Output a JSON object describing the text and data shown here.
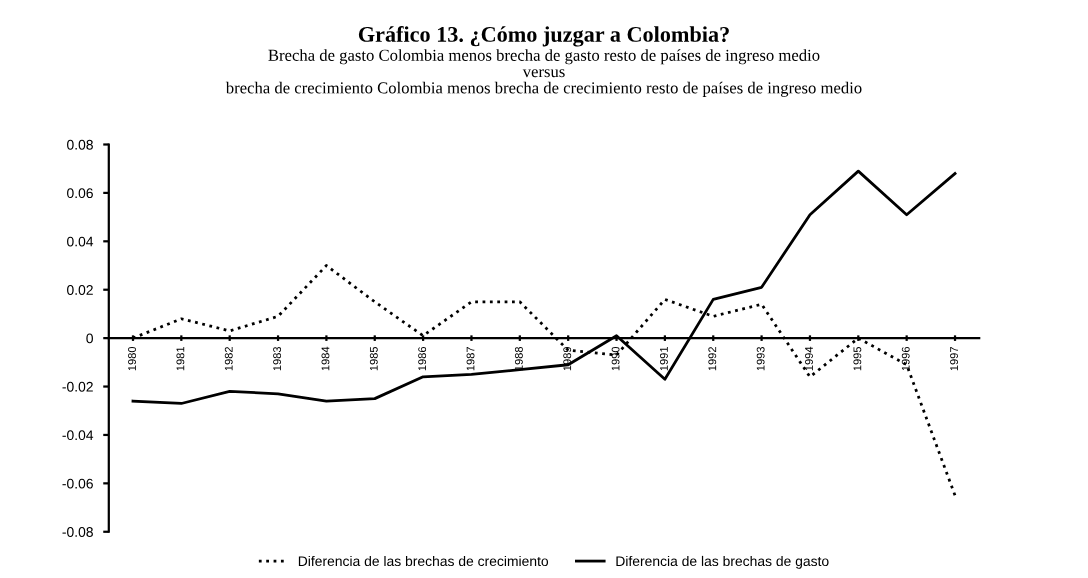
{
  "chart_data": {
    "type": "line",
    "title": "Gráfico 13. ¿Cómo juzgar a Colombia?",
    "subtitle": "Brecha de gasto Colombia menos brecha de gasto resto de países de ingreso medio\nversus\nbrecha de crecimiento Colombia menos brecha de crecimiento resto de países de ingreso medio",
    "categories": [
      "1980",
      "1981",
      "1982",
      "1983",
      "1984",
      "1985",
      "1986",
      "1987",
      "1988",
      "1989",
      "1990",
      "1991",
      "1992",
      "1993",
      "1994",
      "1995",
      "1996",
      "1997"
    ],
    "series": [
      {
        "name": "Diferencia de las brechas de crecimiento",
        "color": "#000000",
        "line_style": "dotted",
        "values": [
          0,
          0.008,
          0.003,
          0.009,
          0.03,
          0.015,
          0.001,
          0.015,
          0.015,
          -0.005,
          -0.007,
          0.016,
          0.009,
          0.014,
          -0.016,
          0,
          -0.011,
          -0.065
        ]
      },
      {
        "name": "Diferencia de las brechas de gasto",
        "color": "#000000",
        "line_style": "solid",
        "values": [
          -0.026,
          -0.027,
          -0.022,
          -0.023,
          -0.026,
          -0.025,
          -0.016,
          -0.015,
          -0.013,
          -0.011,
          0.001,
          -0.017,
          0.016,
          0.021,
          0.051,
          0.069,
          0.051,
          0.068
        ]
      }
    ],
    "ylim": [
      -0.08,
      0.08
    ],
    "yticks": [
      -0.08,
      -0.06,
      -0.04,
      -0.02,
      0,
      0.02,
      0.04,
      0.06,
      0.08
    ],
    "grid": false,
    "legend": "bottom",
    "marker": "none"
  }
}
